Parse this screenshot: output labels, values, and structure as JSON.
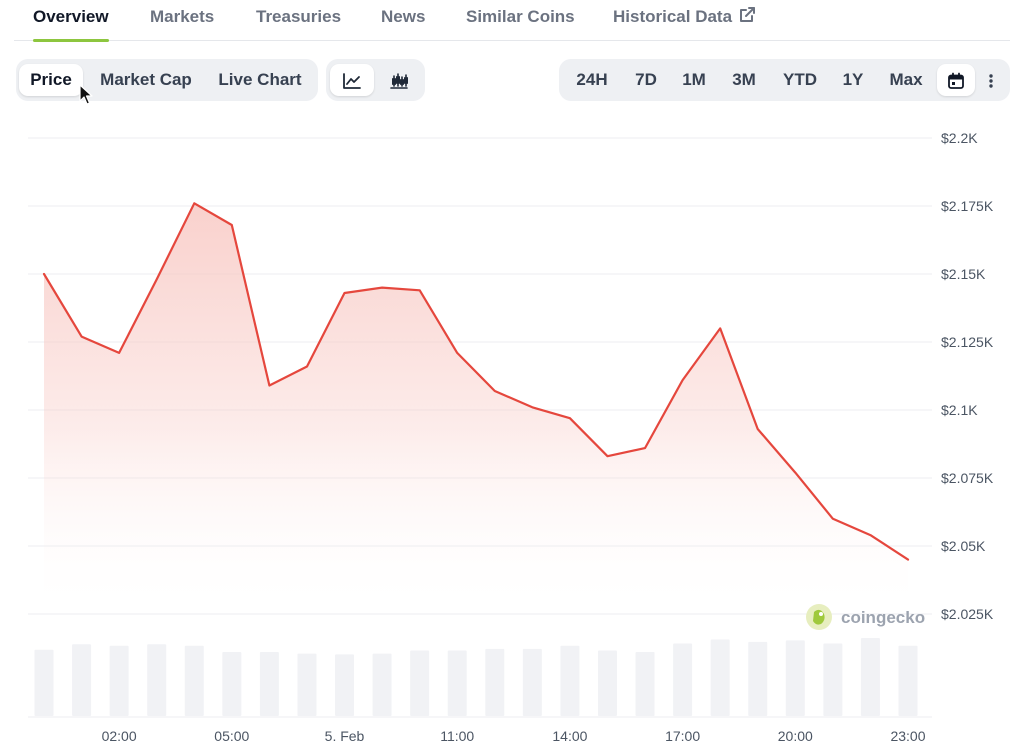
{
  "top_tabs": [
    {
      "label": "Overview",
      "active": true
    },
    {
      "label": "Markets"
    },
    {
      "label": "Treasuries"
    },
    {
      "label": "News"
    },
    {
      "label": "Similar Coins"
    },
    {
      "label": "Historical Data",
      "icon": "external-link-icon"
    }
  ],
  "chart_type_tabs": [
    {
      "label": "Price",
      "active": true
    },
    {
      "label": "Market Cap"
    },
    {
      "label": "Live Chart"
    }
  ],
  "view_toggle": [
    {
      "icon": "line-chart-icon",
      "active": true
    },
    {
      "icon": "candlestick-chart-icon"
    }
  ],
  "range_tabs": [
    {
      "label": "24H"
    },
    {
      "label": "7D"
    },
    {
      "label": "1M"
    },
    {
      "label": "3M"
    },
    {
      "label": "YTD"
    },
    {
      "label": "1Y"
    },
    {
      "label": "Max"
    }
  ],
  "range_icons": [
    "calendar-icon",
    "more-vertical-icon"
  ],
  "watermark": "coingecko",
  "colors": {
    "line": "#e5473d",
    "fill": "#f8c9c4",
    "active_tab_underline": "#8dc63f",
    "volume_bar": "#f1f2f5",
    "grid": "#eceef1"
  },
  "chart_data": {
    "type": "area",
    "series": [
      {
        "x": [
          "00:00",
          "01:00",
          "02:00",
          "03:00",
          "04:00",
          "05:00",
          "06:00",
          "07:00",
          "08:00",
          "09:00",
          "10:00",
          "11:00",
          "12:00",
          "13:00",
          "14:00",
          "15:00",
          "16:00",
          "17:00",
          "18:00",
          "19:00",
          "20:00",
          "21:00",
          "22:00",
          "23:00"
        ],
        "values": [
          2150,
          2127,
          2121,
          2148,
          2176,
          2168,
          2109,
          2116,
          2143,
          2145,
          2144,
          2121,
          2107,
          2101,
          2097,
          2083,
          2086,
          2111,
          2130,
          2093,
          2077,
          2060,
          2054,
          2045
        ]
      }
    ],
    "volume_relative": [
      0.85,
      0.92,
      0.9,
      0.92,
      0.9,
      0.82,
      0.82,
      0.8,
      0.79,
      0.8,
      0.84,
      0.84,
      0.86,
      0.86,
      0.9,
      0.84,
      0.82,
      0.93,
      0.98,
      0.95,
      0.97,
      0.93,
      1.0,
      0.9
    ],
    "yticks": [
      "$2.2K",
      "$2.175K",
      "$2.15K",
      "$2.125K",
      "$2.1K",
      "$2.075K",
      "$2.05K",
      "$2.025K"
    ],
    "ytick_values": [
      2200,
      2175,
      2150,
      2125,
      2100,
      2075,
      2050,
      2025
    ],
    "xticks": [
      "02:00",
      "05:00",
      "5. Feb",
      "11:00",
      "14:00",
      "17:00",
      "20:00",
      "23:00"
    ],
    "ylim": [
      2025,
      2200
    ],
    "grid": true
  }
}
